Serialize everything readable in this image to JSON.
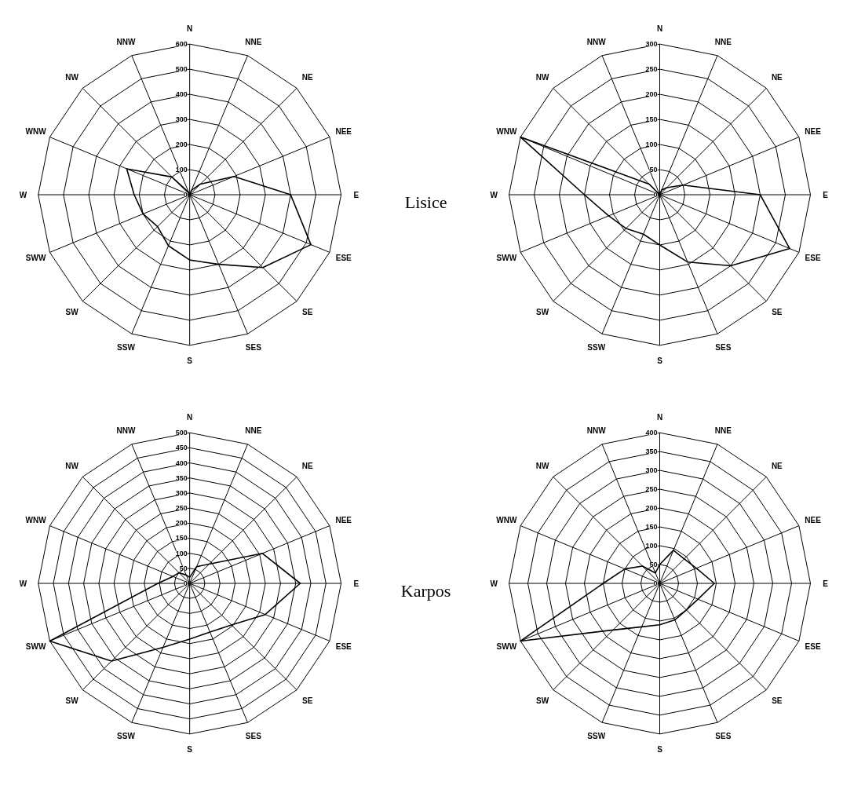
{
  "chart_data": [
    {
      "type": "radar",
      "categories": [
        "N",
        "NNE",
        "NE",
        "NEE",
        "E",
        "ESE",
        "SE",
        "SES",
        "S",
        "SSW",
        "SW",
        "SWW",
        "W",
        "WNW",
        "NW",
        "NNW"
      ],
      "ylim": [
        0,
        600
      ],
      "yticks": [
        0,
        100,
        200,
        300,
        400,
        500,
        600
      ],
      "grid": true,
      "annotations": [
        "Lisice"
      ],
      "series": [
        {
          "color": "#000000",
          "values": [
            0,
            20,
            60,
            190,
            400,
            520,
            410,
            300,
            260,
            220,
            180,
            200,
            220,
            270,
            100,
            10
          ]
        }
      ]
    },
    {
      "type": "radar",
      "categories": [
        "N",
        "NNE",
        "NE",
        "NEE",
        "E",
        "ESE",
        "SE",
        "SES",
        "S",
        "SSW",
        "SW",
        "SWW",
        "W",
        "WNW",
        "NW",
        "NNW"
      ],
      "ylim": [
        0,
        300
      ],
      "yticks": [
        0,
        50,
        100,
        150,
        200,
        250,
        300
      ],
      "grid": true,
      "series": [
        {
          "color": "#000000",
          "values": [
            0,
            10,
            20,
            50,
            200,
            280,
            200,
            145,
            100,
            85,
            95,
            110,
            150,
            300,
            30,
            0
          ]
        }
      ]
    },
    {
      "type": "radar",
      "categories": [
        "N",
        "NNE",
        "NE",
        "NEE",
        "E",
        "ESE",
        "SE",
        "SES",
        "S",
        "SSW",
        "SW",
        "SWW",
        "W",
        "WNW",
        "NW",
        "NNW"
      ],
      "ylim": [
        0,
        500
      ],
      "yticks": [
        0,
        50,
        100,
        150,
        200,
        250,
        300,
        350,
        400,
        450,
        500
      ],
      "grid": true,
      "annotations": [
        "Karpos"
      ],
      "series": [
        {
          "color": "#000000",
          "values": [
            20,
            60,
            90,
            260,
            365,
            270,
            195,
            175,
            185,
            230,
            365,
            500,
            105,
            60,
            50,
            30
          ]
        }
      ]
    },
    {
      "type": "radar",
      "categories": [
        "N",
        "NNE",
        "NE",
        "NEE",
        "E",
        "ESE",
        "SE",
        "SES",
        "S",
        "SSW",
        "SW",
        "SWW",
        "W",
        "WNW",
        "NW",
        "NNW"
      ],
      "ylim": [
        0,
        400
      ],
      "yticks": [
        0,
        50,
        100,
        150,
        200,
        250,
        300,
        350,
        400
      ],
      "grid": true,
      "series": [
        {
          "color": "#000000",
          "values": [
            50,
            95,
            92,
            105,
            145,
            110,
            100,
            105,
            110,
            125,
            175,
            400,
            150,
            100,
            65,
            30
          ]
        }
      ]
    }
  ]
}
